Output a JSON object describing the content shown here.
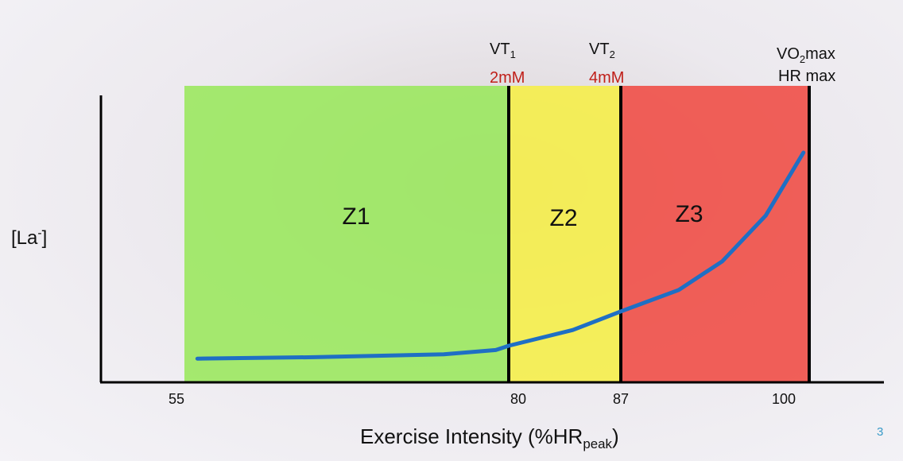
{
  "chart_data": {
    "type": "area",
    "xlabel": "Exercise Intensity (%HR",
    "xlabel_sub": "peak",
    "xlabel_end": ")",
    "ylabel": "[La",
    "ylabel_sup": "-",
    "ylabel_end": "]",
    "x_ticks": [
      55,
      80,
      87,
      100
    ],
    "zones": [
      {
        "name": "Z1",
        "from": 55,
        "to": 80,
        "color": "#9be85f"
      },
      {
        "name": "Z2",
        "from": 80,
        "to": 87,
        "color": "#f5ee4a"
      },
      {
        "name": "Z3",
        "from": 87,
        "to": 100,
        "color": "#ef4f47"
      }
    ],
    "thresholds": [
      {
        "x": 80,
        "label": "VT",
        "label_sub": "1",
        "value": "2mM"
      },
      {
        "x": 87,
        "label": "VT",
        "label_sub": "2",
        "value": "4mM"
      },
      {
        "x": 100,
        "label": "VO",
        "label_sub": "2",
        "label_end": "max",
        "line2": "HR max"
      }
    ],
    "curve": {
      "color": "#1f6fc4",
      "x": [
        56,
        65,
        75,
        79,
        80,
        84,
        87,
        91,
        94,
        97,
        99.6
      ],
      "y": [
        0.08,
        0.085,
        0.095,
        0.11,
        0.125,
        0.18,
        0.245,
        0.32,
        0.42,
        0.58,
        0.8
      ]
    },
    "grid": false
  },
  "slide": {
    "page_number": "3",
    "page_number_color": "#3a9bc8"
  }
}
